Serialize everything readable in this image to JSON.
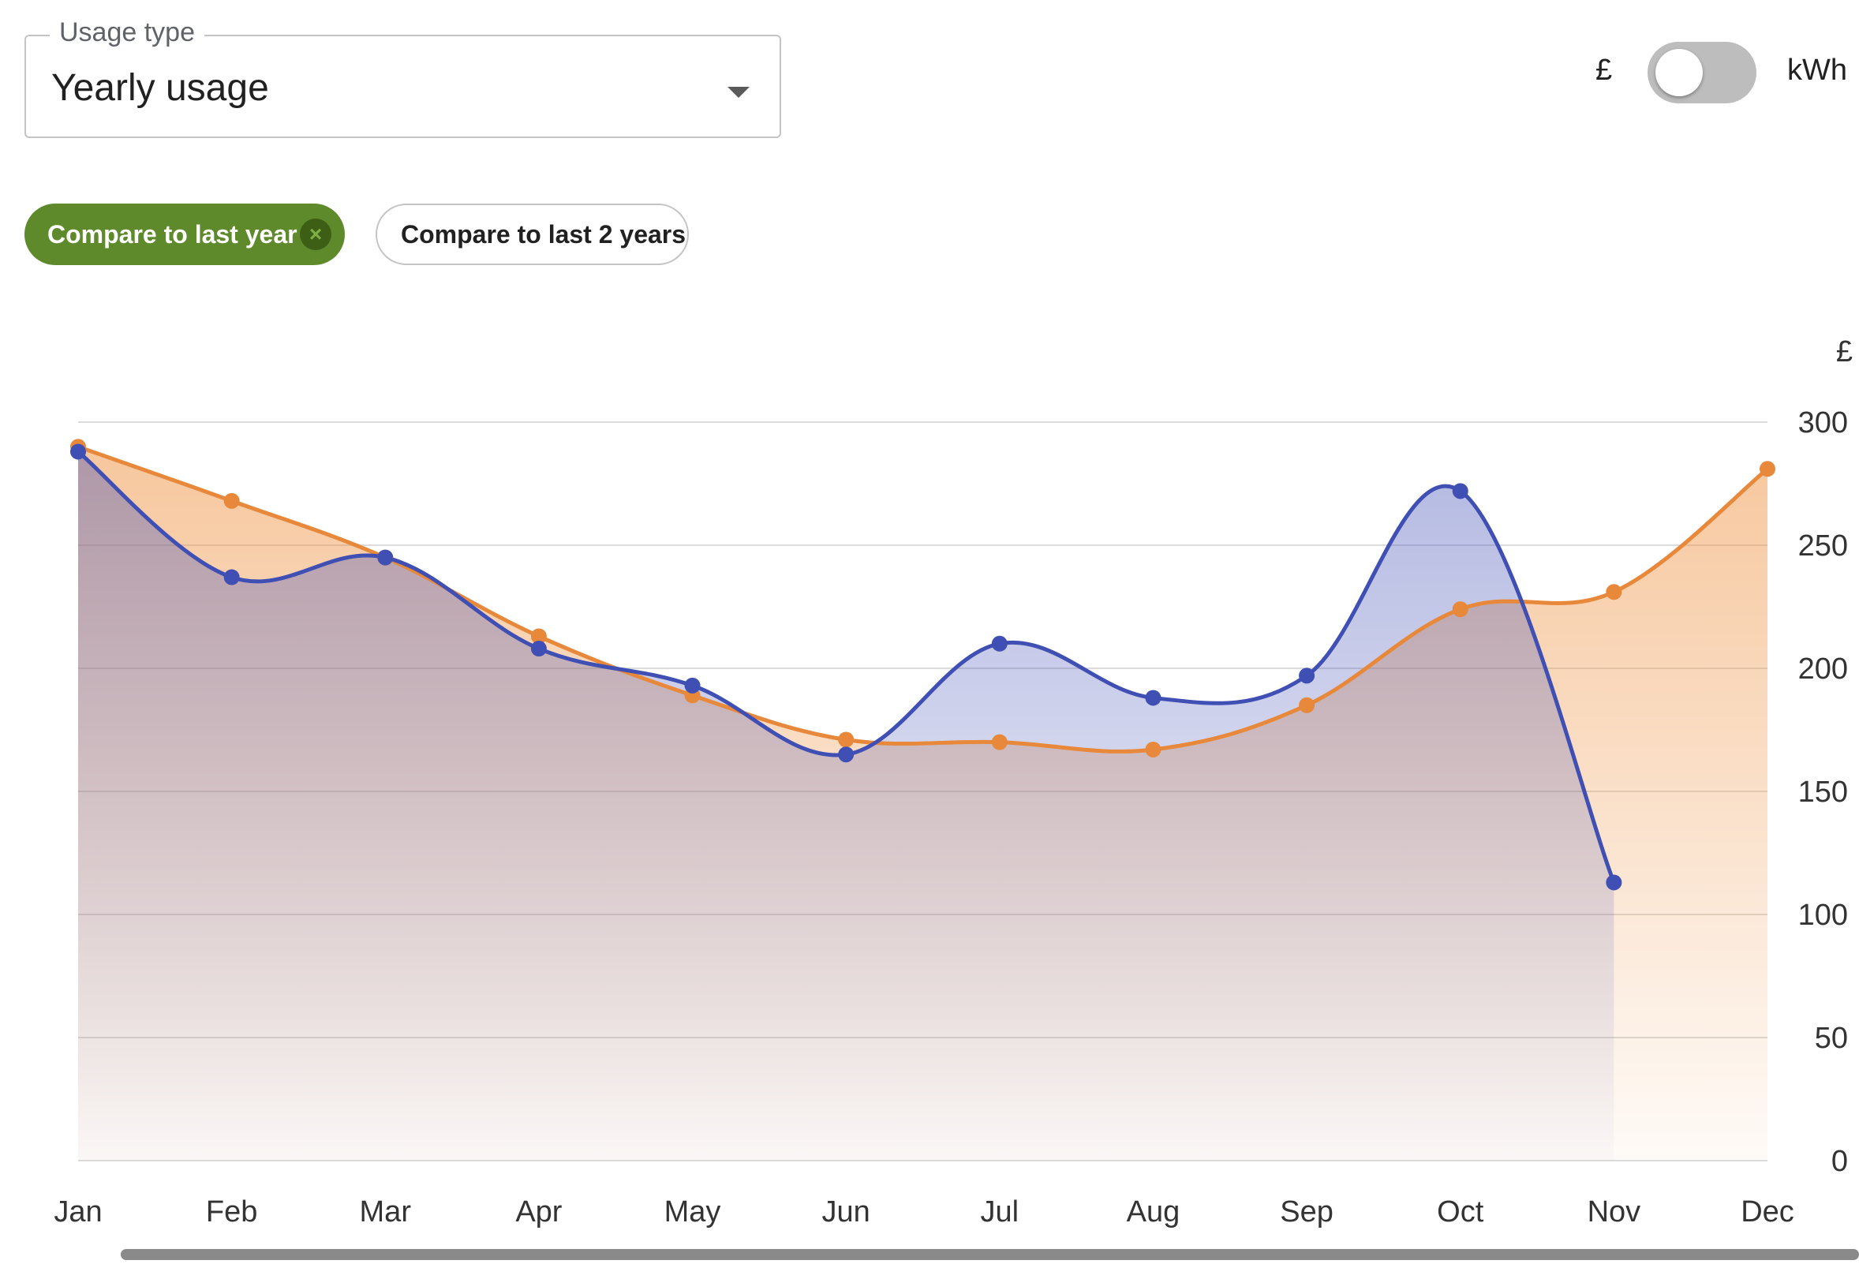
{
  "usage_type": {
    "label": "Usage type",
    "value": "Yearly usage"
  },
  "unit_toggle": {
    "left_label": "£",
    "right_label": "kWh",
    "selected": "£"
  },
  "compare_chips": {
    "active_label": "Compare to last year",
    "active_close_icon": "×",
    "other_label": "Compare to last 2 years"
  },
  "chart_data": {
    "type": "area",
    "y_unit_label": "£",
    "categories": [
      "Jan",
      "Feb",
      "Mar",
      "Apr",
      "May",
      "Jun",
      "Jul",
      "Aug",
      "Sep",
      "Oct",
      "Nov",
      "Dec"
    ],
    "ylim": [
      0,
      300
    ],
    "yticks": [
      0,
      50,
      100,
      150,
      200,
      250,
      300
    ],
    "grid": true,
    "series": [
      {
        "color": "#e8883a",
        "values": [
          290,
          268,
          245,
          213,
          189,
          171,
          170,
          167,
          185,
          224,
          231,
          281
        ]
      },
      {
        "color": "#3f4fb3",
        "values": [
          288,
          237,
          245,
          208,
          193,
          165,
          210,
          188,
          197,
          272,
          113,
          null
        ]
      }
    ]
  }
}
